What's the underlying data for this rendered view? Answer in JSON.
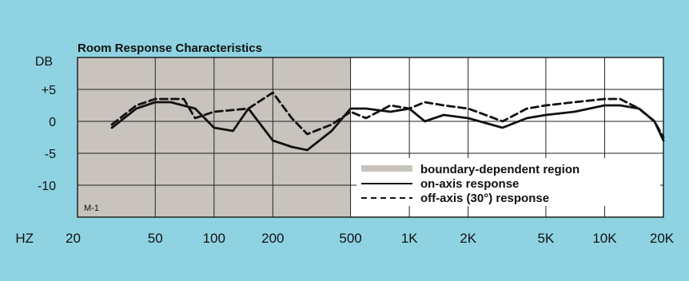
{
  "colors": {
    "panel_background": "#8fd3e2",
    "plot_background": "#ffffff",
    "boundary_region": "#c8c4bd",
    "grid": "#222222",
    "on_axis": "#111111",
    "off_axis": "#111111"
  },
  "chart_data": {
    "type": "line",
    "title": "Room Response Characteristics",
    "ylabel": "DB",
    "xlabel": "HZ",
    "x_scale": "log",
    "xlim": [
      20,
      20000
    ],
    "ylim": [
      -15,
      10
    ],
    "y_ticks": [
      {
        "value": 5,
        "label": "+5"
      },
      {
        "value": 0,
        "label": "0"
      },
      {
        "value": -5,
        "label": "-5"
      },
      {
        "value": -10,
        "label": "-10"
      }
    ],
    "x_ticks": [
      {
        "value": 20,
        "label": "20"
      },
      {
        "value": 50,
        "label": "50"
      },
      {
        "value": 100,
        "label": "100"
      },
      {
        "value": 200,
        "label": "200"
      },
      {
        "value": 500,
        "label": "500"
      },
      {
        "value": 1000,
        "label": "1K"
      },
      {
        "value": 2000,
        "label": "2K"
      },
      {
        "value": 5000,
        "label": "5K"
      },
      {
        "value": 10000,
        "label": "10K"
      },
      {
        "value": 20000,
        "label": "20K"
      }
    ],
    "grid": true,
    "shaded_region": {
      "name": "boundary-dependent region",
      "x_range": [
        20,
        500
      ]
    },
    "corner_label": "M-1",
    "legend": {
      "placement": "lower-right",
      "items": [
        {
          "name": "boundary-dependent region",
          "style": "band"
        },
        {
          "name": "on-axis response",
          "style": "solid"
        },
        {
          "name": "off-axis (30°) response",
          "style": "dashed"
        }
      ]
    },
    "series": [
      {
        "name": "on-axis response",
        "style": "solid",
        "points": [
          [
            30,
            -1
          ],
          [
            40,
            2
          ],
          [
            50,
            3
          ],
          [
            60,
            3
          ],
          [
            80,
            2
          ],
          [
            100,
            -1
          ],
          [
            125,
            -1.5
          ],
          [
            150,
            2
          ],
          [
            200,
            -3
          ],
          [
            250,
            -4
          ],
          [
            300,
            -4.5
          ],
          [
            400,
            -1.5
          ],
          [
            500,
            2
          ],
          [
            600,
            2
          ],
          [
            800,
            1.5
          ],
          [
            1000,
            2
          ],
          [
            1200,
            0
          ],
          [
            1500,
            1
          ],
          [
            2000,
            0.5
          ],
          [
            3000,
            -1
          ],
          [
            4000,
            0.5
          ],
          [
            5000,
            1
          ],
          [
            7000,
            1.5
          ],
          [
            10000,
            2.5
          ],
          [
            12000,
            2.5
          ],
          [
            15000,
            2
          ],
          [
            18000,
            0
          ],
          [
            20000,
            -3
          ]
        ]
      },
      {
        "name": "off-axis (30°) response",
        "style": "dashed",
        "points": [
          [
            30,
            -0.5
          ],
          [
            40,
            2.5
          ],
          [
            50,
            3.5
          ],
          [
            70,
            3.5
          ],
          [
            80,
            0.5
          ],
          [
            100,
            1.5
          ],
          [
            150,
            2
          ],
          [
            200,
            4.5
          ],
          [
            250,
            0.5
          ],
          [
            300,
            -2
          ],
          [
            400,
            -0.5
          ],
          [
            500,
            1.5
          ],
          [
            600,
            0.5
          ],
          [
            800,
            2.5
          ],
          [
            1000,
            2
          ],
          [
            1200,
            3
          ],
          [
            1500,
            2.5
          ],
          [
            2000,
            2
          ],
          [
            3000,
            0
          ],
          [
            4000,
            2
          ],
          [
            5000,
            2.5
          ],
          [
            7000,
            3
          ],
          [
            10000,
            3.5
          ],
          [
            12000,
            3.5
          ],
          [
            15000,
            2
          ],
          [
            18000,
            0
          ],
          [
            20000,
            -2.5
          ]
        ]
      }
    ]
  }
}
